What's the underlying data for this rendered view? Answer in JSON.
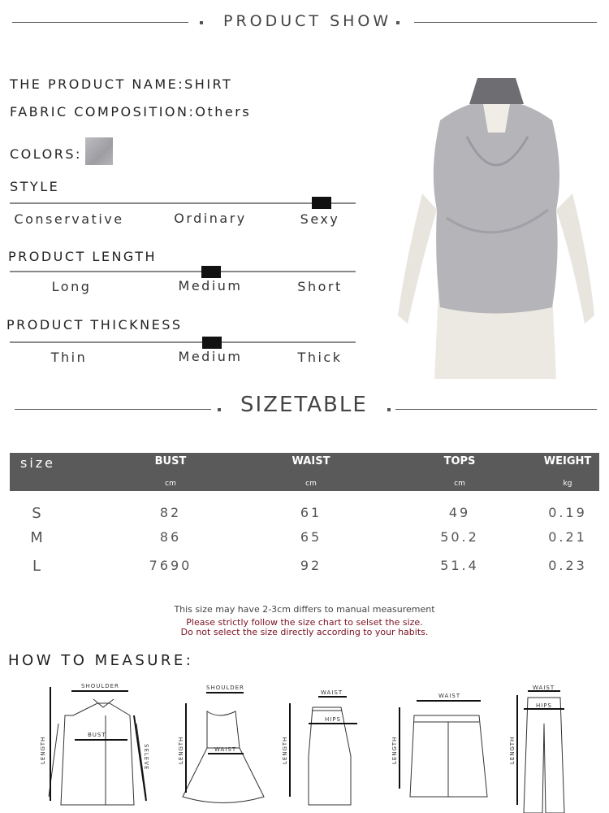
{
  "product_show": {
    "title": "PRODUCT SHOW"
  },
  "info": {
    "name": "THE PRODUCT NAME:SHIRT",
    "fabric_label": "FABRIC COMPOSITION:",
    "fabric_value": "Others",
    "colors_label": "COLORS:",
    "color_swatch": "#a9a9ad"
  },
  "scales": [
    {
      "title": "STYLE",
      "options": [
        "Conservative",
        "Ordinary",
        "Sexy"
      ],
      "selected": "Sexy",
      "level": 0.9
    },
    {
      "title": "PRODUCT LENGTH",
      "options": [
        "Long",
        "Medium",
        "Short"
      ],
      "selected": "Medium",
      "level": 0.58
    },
    {
      "title": "PRODUCT THICKNESS",
      "options": [
        "Thin",
        "Medium",
        "Thick"
      ],
      "selected": "Medium",
      "level": 0.58
    }
  ],
  "sizetable": {
    "title": "SIZETABLE",
    "columns": [
      {
        "label": "size",
        "unit": ""
      },
      {
        "label": "BUST",
        "unit": "cm"
      },
      {
        "label": "WAIST",
        "unit": "cm"
      },
      {
        "label": "TOPS",
        "unit": "cm"
      },
      {
        "label": "WEIGHT",
        "unit": "kg"
      }
    ],
    "rows": [
      [
        "S",
        "82",
        "61",
        "49",
        "0.19"
      ],
      [
        "M",
        "86",
        "65",
        "50.2",
        "0.21"
      ],
      [
        "L",
        "7690",
        "92",
        "51.4",
        "0.23"
      ]
    ],
    "header_color": "#5a5a5a"
  },
  "notes": {
    "line1": "This size may have 2-3cm differs to manual measurement",
    "line2": "Please strictly follow the size chart to selset the size.",
    "line3": "Do not select the size directly according to your habits.",
    "warning_color": "#7a1020"
  },
  "measure": {
    "title": "HOW TO MEASURE:",
    "shoulder": "SHOULDER",
    "bust": "BUST",
    "waist": "WAIST",
    "hips": "HIPS",
    "length": "LENGTH",
    "sleeve": "SELEVE"
  }
}
